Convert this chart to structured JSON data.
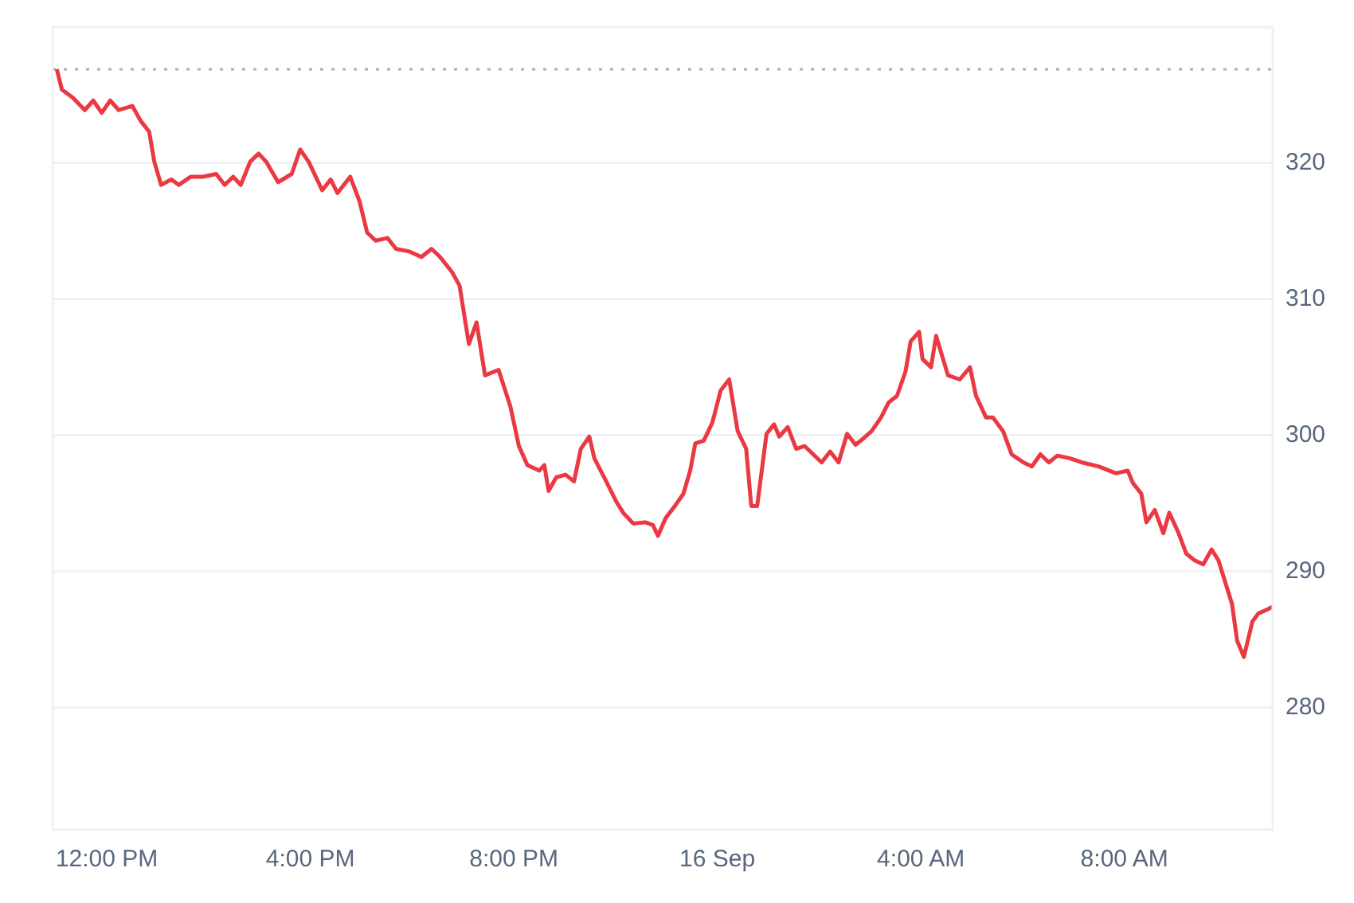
{
  "chart_data": {
    "type": "line",
    "x": [
      "--09-15T11:01",
      "--09-15T11:07",
      "--09-15T11:20",
      "--09-15T11:34",
      "--09-15T11:44",
      "--09-15T11:54",
      "--09-15T12:04",
      "--09-15T12:14",
      "--09-15T12:30",
      "--09-15T12:40",
      "--09-15T12:50",
      "--09-15T12:56",
      "--09-15T13:04",
      "--09-15T13:16",
      "--09-15T13:25",
      "--09-15T13:39",
      "--09-15T13:53",
      "--09-15T14:09",
      "--09-15T14:19",
      "--09-15T14:29",
      "--09-15T14:38",
      "--09-15T14:49",
      "--09-15T14:59",
      "--09-15T15:08",
      "--09-15T15:22",
      "--09-15T15:38",
      "--09-15T15:48",
      "--09-15T15:58",
      "--09-15T16:14",
      "--09-15T16:24",
      "--09-15T16:32",
      "--09-15T16:47",
      "--09-15T16:58",
      "--09-15T17:07",
      "--09-15T17:17",
      "--09-15T17:31",
      "--09-15T17:41",
      "--09-15T17:57",
      "--09-15T18:11",
      "--09-15T18:23",
      "--09-15T18:33",
      "--09-15T18:47",
      "--09-15T18:56",
      "--09-15T19:07",
      "--09-15T19:16",
      "--09-15T19:26",
      "--09-15T19:42",
      "--09-15T19:56",
      "--09-15T20:06",
      "--09-15T20:16",
      "--09-15T20:30",
      "--09-15T20:36",
      "--09-15T20:41",
      "--09-15T20:50",
      "--09-15T21:01",
      "--09-15T21:11",
      "--09-15T21:19",
      "--09-15T21:29",
      "--09-15T21:35",
      "--09-15T21:49",
      "--09-15T22:01",
      "--09-15T22:09",
      "--09-15T22:21",
      "--09-15T22:35",
      "--09-15T22:44",
      "--09-15T22:50",
      "--09-15T22:59",
      "--09-15T23:10",
      "--09-15T23:20",
      "--09-15T23:28",
      "--09-15T23:34",
      "--09-15T23:44",
      "--09-15T23:54",
      "--09-16T00:04",
      "--09-16T00:14",
      "--09-16T00:24",
      "--09-16T00:34",
      "--09-16T00:40",
      "--09-16T00:47",
      "--09-16T00:58",
      "--09-16T01:07",
      "--09-16T01:13",
      "--09-16T01:23",
      "--09-16T01:33",
      "--09-16T01:43",
      "--09-16T01:53",
      "--09-16T02:03",
      "--09-16T02:13",
      "--09-16T02:23",
      "--09-16T02:33",
      "--09-16T02:43",
      "--09-16T02:53",
      "--09-16T03:02",
      "--09-16T03:13",
      "--09-16T03:22",
      "--09-16T03:32",
      "--09-16T03:42",
      "--09-16T03:48",
      "--09-16T03:58",
      "--09-16T04:02",
      "--09-16T04:12",
      "--09-16T04:18",
      "--09-16T04:32",
      "--09-16T04:46",
      "--09-16T04:58",
      "--09-16T05:05",
      "--09-16T05:17",
      "--09-16T05:25",
      "--09-16T05:37",
      "--09-16T05:47",
      "--09-16T06:01",
      "--09-16T06:11",
      "--09-16T06:21",
      "--09-16T06:31",
      "--09-16T06:41",
      "--09-16T06:56",
      "--09-16T07:10",
      "--09-16T07:30",
      "--09-16T07:50",
      "--09-16T08:04",
      "--09-16T08:10",
      "--09-16T08:20",
      "--09-16T08:26",
      "--09-16T08:36",
      "--09-16T08:46",
      "--09-16T08:53",
      "--09-16T09:04",
      "--09-16T09:13",
      "--09-16T09:23",
      "--09-16T09:33",
      "--09-16T09:43",
      "--09-16T09:51",
      "--09-16T10:01",
      "--09-16T10:07",
      "--09-16T10:13",
      "--09-16T10:21",
      "--09-16T10:31",
      "--09-16T10:38",
      "--09-16T10:49",
      "--09-16T10:55"
    ],
    "series": [
      {
        "color": "#ea3943",
        "values": [
          326.9,
          325.4,
          324.8,
          323.9,
          324.6,
          323.7,
          324.6,
          323.9,
          324.2,
          323.1,
          322.3,
          320.1,
          318.4,
          318.8,
          318.4,
          319.0,
          319.0,
          319.2,
          318.4,
          319.0,
          318.4,
          320.1,
          320.7,
          320.1,
          318.6,
          319.2,
          321.0,
          320.1,
          318.0,
          318.8,
          317.8,
          319.0,
          317.2,
          314.9,
          314.3,
          314.5,
          313.7,
          313.5,
          313.1,
          313.7,
          313.1,
          312.0,
          311.0,
          306.7,
          308.3,
          304.4,
          304.8,
          302.1,
          299.2,
          297.8,
          297.4,
          297.8,
          295.9,
          296.9,
          297.1,
          296.6,
          299.0,
          299.9,
          298.3,
          296.6,
          295.1,
          294.3,
          293.5,
          293.6,
          293.4,
          292.6,
          293.9,
          294.8,
          295.7,
          297.4,
          299.4,
          299.6,
          300.9,
          303.3,
          304.1,
          300.3,
          299.0,
          294.8,
          294.8,
          300.1,
          300.8,
          299.9,
          300.6,
          299.0,
          299.2,
          298.6,
          298.0,
          298.8,
          298.0,
          300.1,
          299.3,
          299.8,
          300.3,
          301.3,
          302.4,
          302.9,
          304.7,
          306.9,
          307.6,
          305.6,
          305.0,
          307.3,
          304.4,
          304.1,
          305.0,
          302.9,
          301.3,
          301.3,
          300.3,
          298.6,
          298.0,
          297.7,
          298.6,
          298.0,
          298.5,
          298.3,
          298.0,
          297.7,
          297.2,
          297.4,
          296.5,
          295.7,
          293.6,
          294.5,
          292.8,
          294.3,
          292.8,
          291.3,
          290.8,
          290.5,
          291.6,
          290.8,
          288.8,
          287.6,
          284.9,
          283.7,
          286.3,
          286.9,
          287.2,
          287.4
        ]
      }
    ],
    "xlim": [
      "--09-15T10:56",
      "--09-16T10:55"
    ],
    "xticks": [
      {
        "value": "--09-15T12:00",
        "label": "12:00 PM"
      },
      {
        "value": "--09-15T16:00",
        "label": "4:00 PM"
      },
      {
        "value": "--09-15T20:00",
        "label": "8:00 PM"
      },
      {
        "value": "--09-16T00:00",
        "label": "16 Sep"
      },
      {
        "value": "--09-16T04:00",
        "label": "4:00 AM"
      },
      {
        "value": "--09-16T08:00",
        "label": "8:00 AM"
      }
    ],
    "ylim": [
      271,
      330
    ],
    "yticks": [
      280,
      290,
      300,
      310,
      320
    ],
    "grid": "y",
    "legend": false,
    "marker": "none",
    "line_style": "solid",
    "ref_lines": [
      {
        "axis": "y",
        "value": 326.9,
        "color": "#a6b0c3",
        "line_style": "dotted"
      }
    ]
  }
}
